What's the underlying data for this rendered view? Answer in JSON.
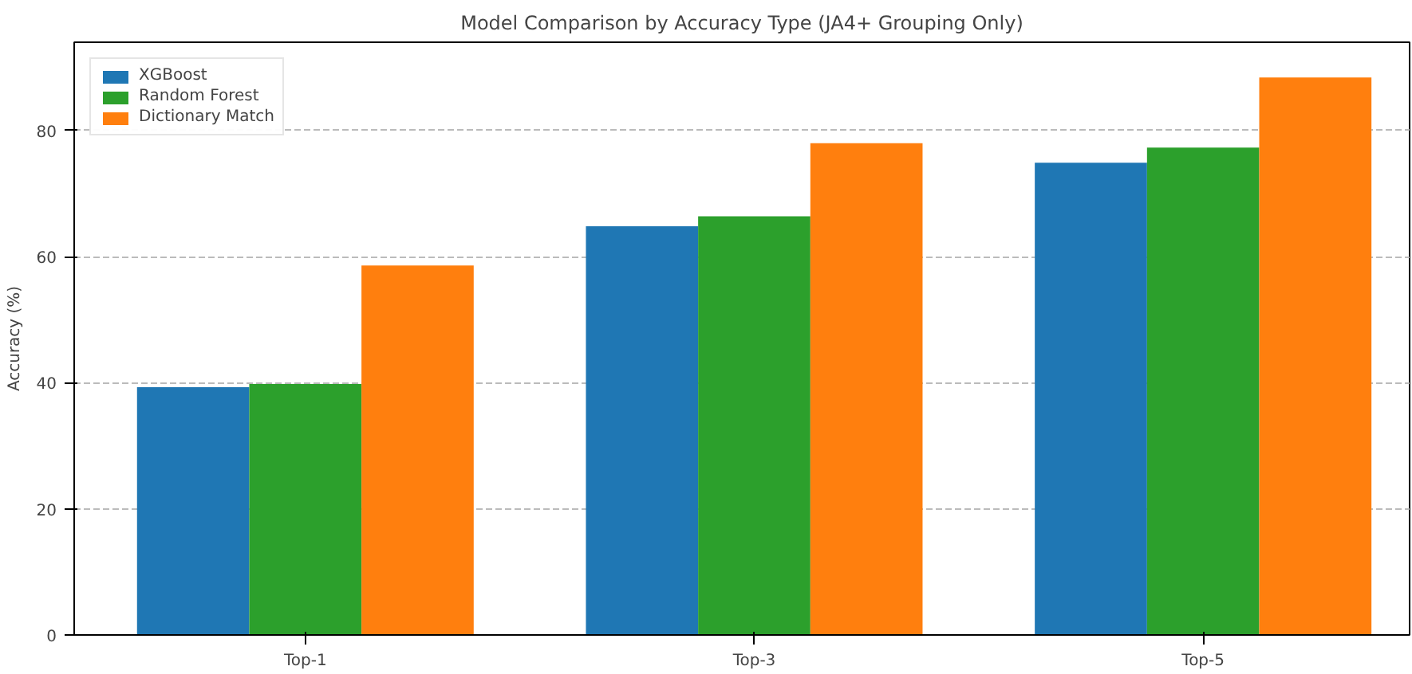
{
  "chart_data": {
    "type": "bar",
    "title": "Model Comparison by Accuracy Type (JA4+ Grouping Only)",
    "ylabel": "Accuracy (%)",
    "categories": [
      "Top-1",
      "Top-3",
      "Top-5"
    ],
    "series": [
      {
        "name": "XGBoost",
        "color": "#1f77b4",
        "values": [
          39.3,
          64.8,
          74.9
        ]
      },
      {
        "name": "Random Forest",
        "color": "#2ca02c",
        "values": [
          39.8,
          66.4,
          77.3
        ]
      },
      {
        "name": "Dictionary Match",
        "color": "#ff7f0e",
        "values": [
          58.6,
          78.0,
          88.4
        ]
      }
    ],
    "ylim": [
      0,
      94
    ],
    "yticks": [
      0,
      20,
      40,
      60,
      80
    ],
    "grid": "y",
    "legend": "top left"
  }
}
